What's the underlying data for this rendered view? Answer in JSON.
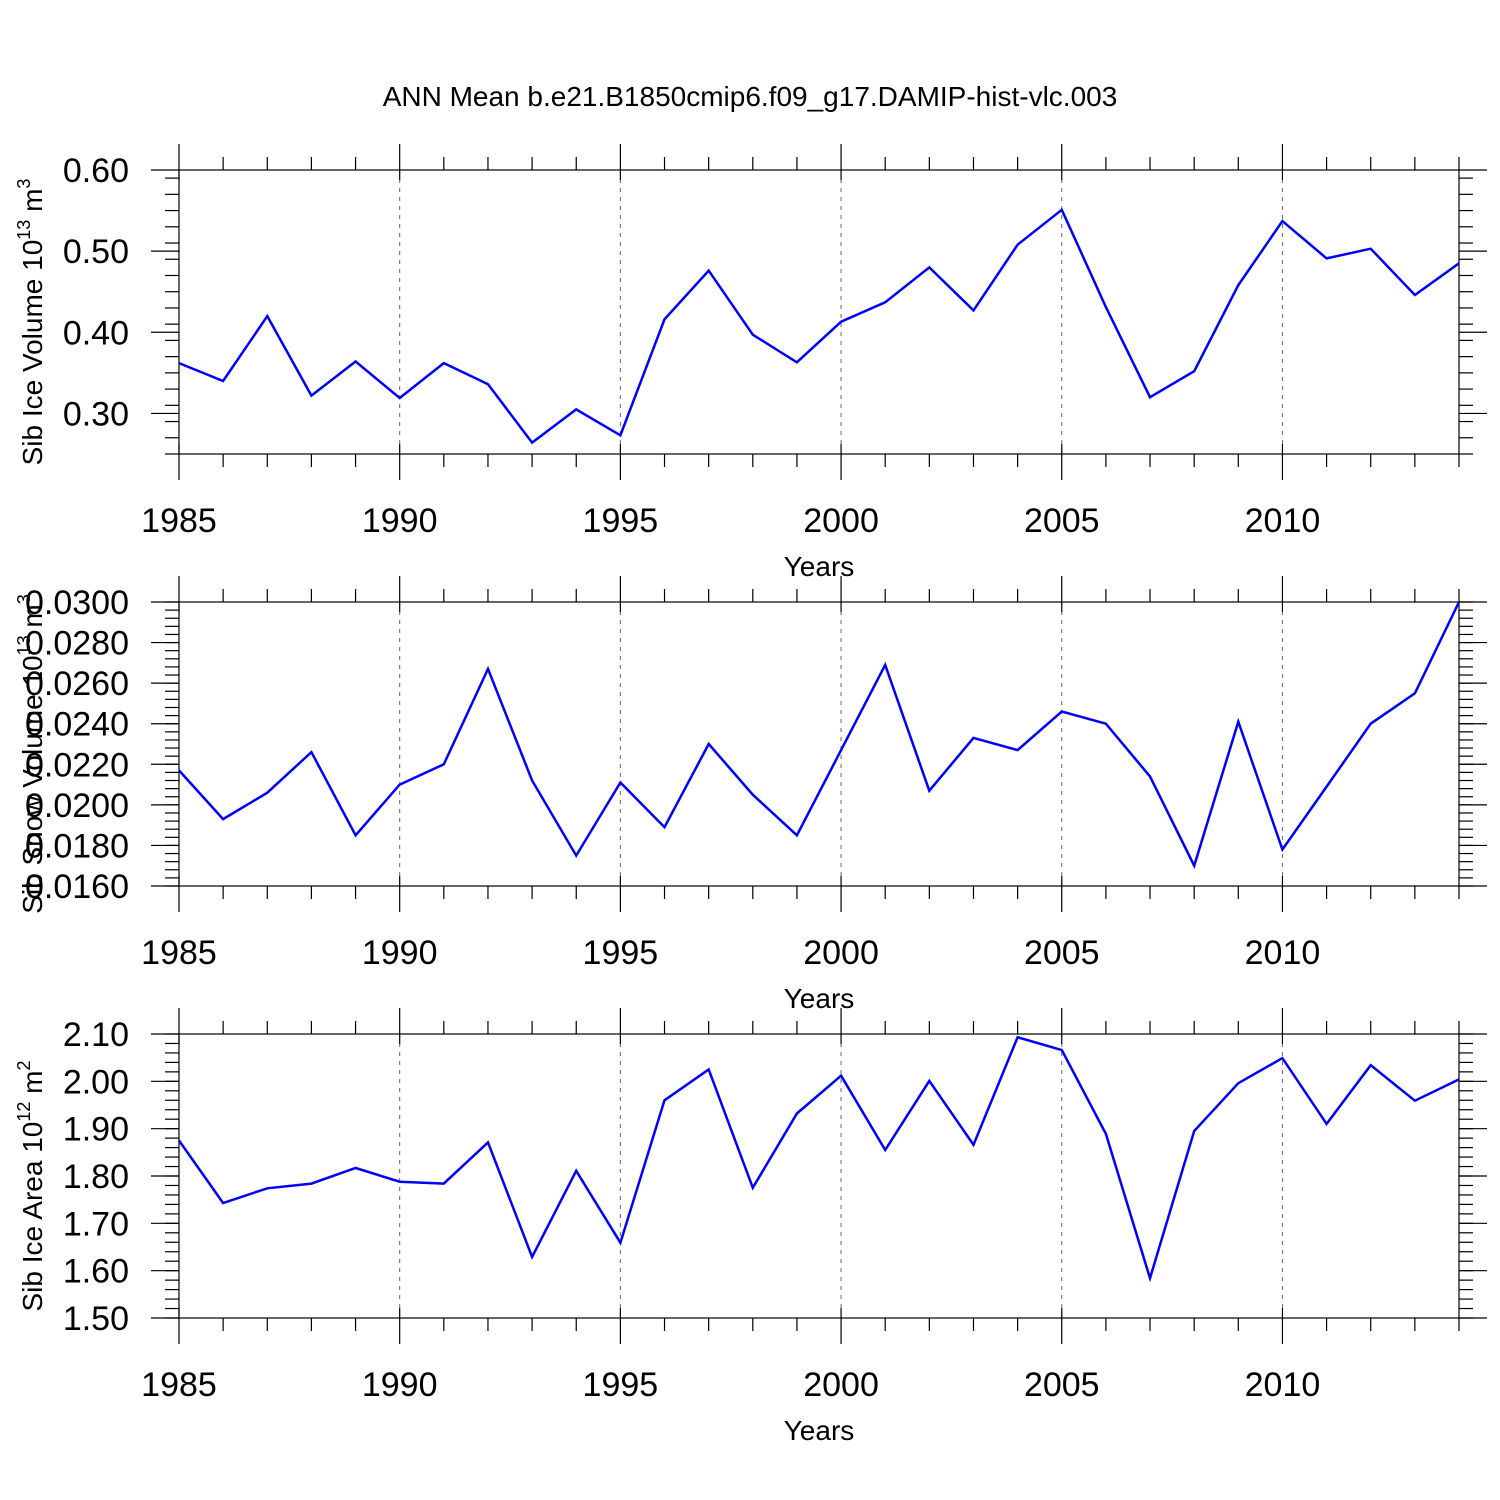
{
  "page_title": "ANN Mean b.e21.B1850cmip6.f09_g17.DAMIP-hist-vlc.003",
  "line_color": "#0000ff",
  "chart_data": [
    {
      "type": "line",
      "title": "ANN Mean b.e21.B1850cmip6.f09_g17.DAMIP-hist-vlc.003",
      "xlabel": "Years",
      "ylabel": "Sib Ice Volume 10",
      "ylabel_exp": "13",
      "ylabel_unit": " m",
      "ylabel_unit_exp": "3",
      "x": [
        1985,
        1986,
        1987,
        1988,
        1989,
        1990,
        1991,
        1992,
        1993,
        1994,
        1995,
        1996,
        1997,
        1998,
        1999,
        2000,
        2001,
        2002,
        2003,
        2004,
        2005,
        2006,
        2007,
        2008,
        2009,
        2010,
        2011,
        2012,
        2013,
        2014
      ],
      "values": [
        0.362,
        0.34,
        0.42,
        0.322,
        0.364,
        0.319,
        0.362,
        0.336,
        0.264,
        0.305,
        0.273,
        0.416,
        0.476,
        0.397,
        0.363,
        0.413,
        0.437,
        0.48,
        0.427,
        0.508,
        0.551,
        0.431,
        0.32,
        0.352,
        0.458,
        0.537,
        0.491,
        0.503,
        0.446,
        0.485
      ],
      "xlim": [
        1985,
        2014
      ],
      "ylim": [
        0.25,
        0.6
      ],
      "xticks": [
        "1985",
        "1990",
        "1995",
        "2000",
        "2005",
        "2010"
      ],
      "yticks": [
        "0.30",
        "0.40",
        "0.50",
        "0.60"
      ],
      "grid": "vertical dashed at major x ticks"
    },
    {
      "type": "line",
      "xlabel": "Years",
      "ylabel": "Sib Snow Volume 10",
      "ylabel_exp": "13",
      "ylabel_unit": " m",
      "ylabel_unit_exp": "3",
      "x": [
        1985,
        1986,
        1987,
        1988,
        1989,
        1990,
        1991,
        1992,
        1993,
        1994,
        1995,
        1996,
        1997,
        1998,
        1999,
        2000,
        2001,
        2002,
        2003,
        2004,
        2005,
        2006,
        2007,
        2008,
        2009,
        2010,
        2011,
        2012,
        2013,
        2014
      ],
      "values": [
        0.0217,
        0.0193,
        0.0206,
        0.0226,
        0.0185,
        0.021,
        0.022,
        0.0267,
        0.0212,
        0.0175,
        0.0211,
        0.0189,
        0.023,
        0.0205,
        0.0185,
        0.0227,
        0.0269,
        0.0207,
        0.0233,
        0.0227,
        0.0246,
        0.024,
        0.0214,
        0.017,
        0.0241,
        0.0178,
        0.0209,
        0.024,
        0.0255,
        0.03
      ],
      "xlim": [
        1985,
        2014
      ],
      "ylim": [
        0.016,
        0.03
      ],
      "xticks": [
        "1985",
        "1990",
        "1995",
        "2000",
        "2005",
        "2010"
      ],
      "yticks": [
        "0.0160",
        "0.0180",
        "0.0200",
        "0.0220",
        "0.0240",
        "0.0260",
        "0.0280",
        "0.0300"
      ],
      "grid": "vertical dashed at major x ticks"
    },
    {
      "type": "line",
      "xlabel": "Years",
      "ylabel": "Sib Ice Area 10",
      "ylabel_exp": "12",
      "ylabel_unit": " m",
      "ylabel_unit_exp": "2",
      "x": [
        1985,
        1986,
        1987,
        1988,
        1989,
        1990,
        1991,
        1992,
        1993,
        1994,
        1995,
        1996,
        1997,
        1998,
        1999,
        2000,
        2001,
        2002,
        2003,
        2004,
        2005,
        2006,
        2007,
        2008,
        2009,
        2010,
        2011,
        2012,
        2013,
        2014
      ],
      "values": [
        1.875,
        1.743,
        1.774,
        1.784,
        1.817,
        1.788,
        1.784,
        1.871,
        1.629,
        1.811,
        1.659,
        1.96,
        2.025,
        1.775,
        1.932,
        2.012,
        1.855,
        2.001,
        1.866,
        2.093,
        2.066,
        1.889,
        1.584,
        1.895,
        1.996,
        2.049,
        1.91,
        2.034,
        1.959,
        2.004
      ],
      "xlim": [
        1985,
        2014
      ],
      "ylim": [
        1.5,
        2.1
      ],
      "xticks": [
        "1985",
        "1990",
        "1995",
        "2000",
        "2005",
        "2010"
      ],
      "yticks": [
        "1.50",
        "1.60",
        "1.70",
        "1.80",
        "1.90",
        "2.00",
        "2.10"
      ],
      "grid": "vertical dashed at major x ticks"
    }
  ]
}
